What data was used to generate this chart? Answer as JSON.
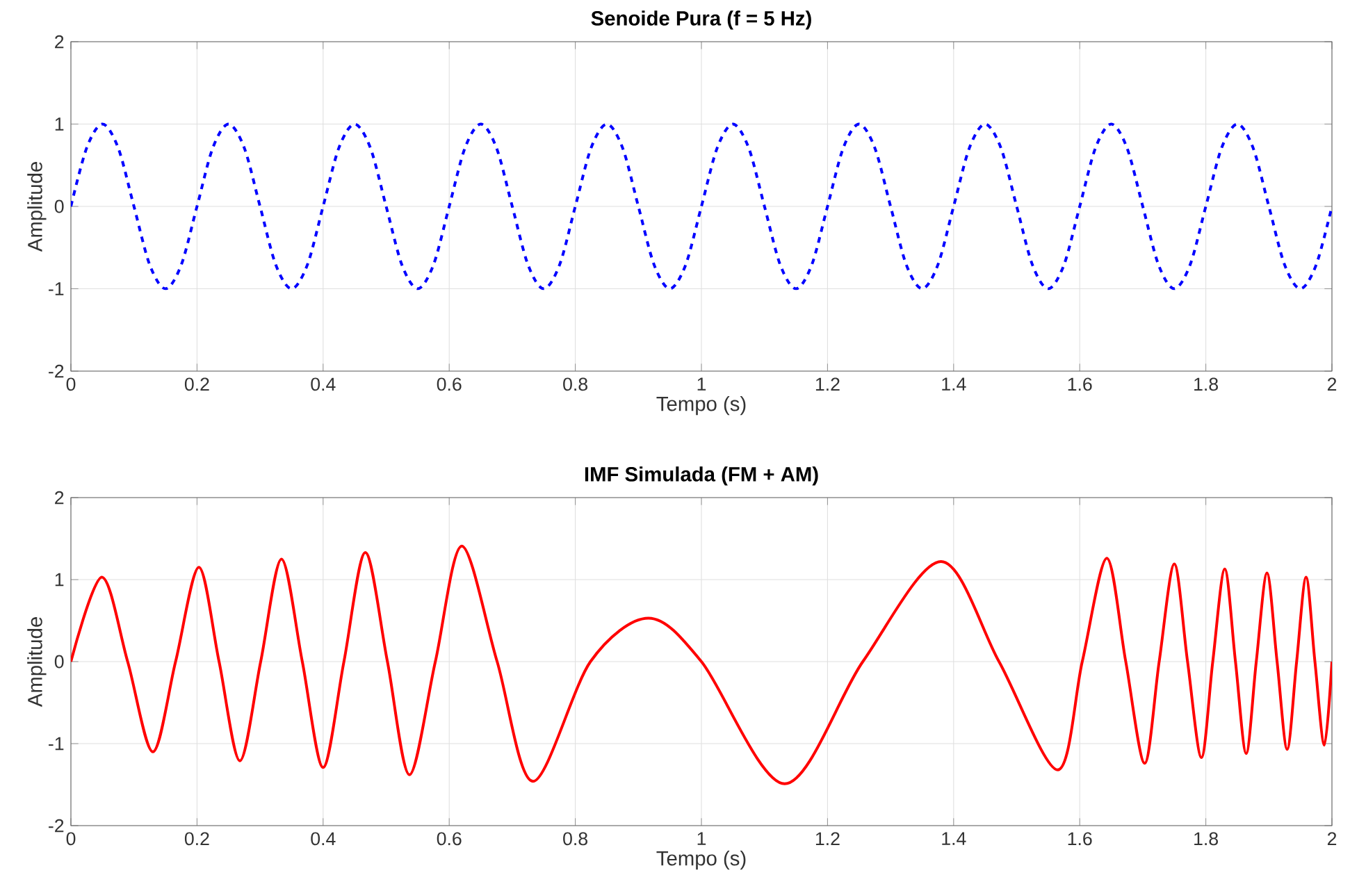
{
  "chart_data": [
    {
      "type": "line",
      "title": "Senoide Pura (f = 5 Hz)",
      "xlabel": "Tempo (s)",
      "ylabel": "Amplitude",
      "x": [
        0,
        0.025,
        0.05,
        0.075,
        0.1,
        0.125,
        0.15,
        0.175,
        0.2,
        0.225,
        0.25,
        0.275,
        0.3,
        0.325,
        0.35,
        0.375,
        0.4,
        0.425,
        0.45,
        0.475,
        0.5,
        0.525,
        0.55,
        0.575,
        0.6,
        0.625,
        0.65,
        0.675,
        0.7,
        0.725,
        0.75,
        0.775,
        0.8,
        0.825,
        0.85,
        0.875,
        0.9,
        0.925,
        0.95,
        0.975,
        1,
        1.025,
        1.05,
        1.075,
        1.1,
        1.125,
        1.15,
        1.175,
        1.2,
        1.225,
        1.25,
        1.275,
        1.3,
        1.325,
        1.35,
        1.375,
        1.4,
        1.425,
        1.45,
        1.475,
        1.5,
        1.525,
        1.55,
        1.575,
        1.6,
        1.625,
        1.65,
        1.675,
        1.7,
        1.725,
        1.75,
        1.775,
        1.8,
        1.825,
        1.85,
        1.875,
        1.9,
        1.925,
        1.95,
        1.975,
        2
      ],
      "series": [
        {
          "color": "#0000ff",
          "line_style": "dashed",
          "values": [
            0,
            0.71,
            1,
            0.71,
            0,
            -0.71,
            -1,
            -0.71,
            0,
            0.71,
            1,
            0.71,
            0,
            -0.71,
            -1,
            -0.71,
            0,
            0.71,
            1,
            0.71,
            0,
            -0.71,
            -1,
            -0.71,
            0,
            0.71,
            1,
            0.71,
            0,
            -0.71,
            -1,
            -0.71,
            0,
            0.71,
            1,
            0.71,
            0,
            -0.71,
            -1,
            -0.71,
            0,
            0.71,
            1,
            0.71,
            0,
            -0.71,
            -1,
            -0.71,
            0,
            0.71,
            1,
            0.71,
            0,
            -0.71,
            -1,
            -0.71,
            0,
            0.71,
            1,
            0.71,
            0,
            -0.71,
            -1,
            -0.71,
            0,
            0.71,
            1,
            0.71,
            0,
            -0.71,
            -1,
            -0.71,
            0,
            0.71,
            1,
            0.71,
            0,
            -0.71,
            -1,
            -0.71,
            0
          ]
        }
      ],
      "xlim": [
        0,
        2
      ],
      "ylim": [
        -2,
        2
      ],
      "xticks": [
        0,
        0.2,
        0.4,
        0.6,
        0.8,
        1,
        1.2,
        1.4,
        1.6,
        1.8,
        2
      ],
      "yticks": [
        -2,
        -1,
        0,
        1,
        2
      ],
      "grid": true
    },
    {
      "type": "line",
      "title": "IMF Simulada (FM + AM)",
      "xlabel": "Tempo (s)",
      "ylabel": "Amplitude",
      "x": [
        0,
        0.049,
        0.09,
        0.13,
        0.166,
        0.203,
        0.235,
        0.268,
        0.301,
        0.334,
        0.367,
        0.4,
        0.433,
        0.467,
        0.502,
        0.537,
        0.578,
        0.62,
        0.676,
        0.733,
        0.824,
        0.916,
        1.0,
        1.132,
        1.256,
        1.38,
        1.472,
        1.565,
        1.604,
        1.643,
        1.673,
        1.703,
        1.726,
        1.75,
        1.771,
        1.793,
        1.811,
        1.83,
        1.847,
        1.864,
        1.88,
        1.897,
        1.913,
        1.929,
        1.944,
        1.959,
        1.973,
        1.988,
        2
      ],
      "series": [
        {
          "color": "#ff0000",
          "line_style": "solid",
          "values": [
            0,
            1.03,
            0,
            -1.1,
            0,
            1.15,
            0,
            -1.21,
            0,
            1.25,
            0,
            -1.29,
            0,
            1.33,
            0,
            -1.38,
            0,
            1.41,
            0,
            -1.46,
            0,
            0.53,
            0,
            -1.49,
            0,
            1.22,
            0,
            -1.32,
            0,
            1.26,
            0,
            -1.24,
            0,
            1.19,
            0,
            -1.17,
            0,
            1.13,
            0,
            -1.12,
            0,
            1.08,
            0,
            -1.07,
            0,
            1.03,
            0,
            -1.02,
            0
          ]
        }
      ],
      "xlim": [
        0,
        2
      ],
      "ylim": [
        -2,
        2
      ],
      "xticks": [
        0,
        0.2,
        0.4,
        0.6,
        0.8,
        1,
        1.2,
        1.4,
        1.6,
        1.8,
        2
      ],
      "yticks": [
        -2,
        -1,
        0,
        1,
        2
      ],
      "grid": true
    }
  ]
}
